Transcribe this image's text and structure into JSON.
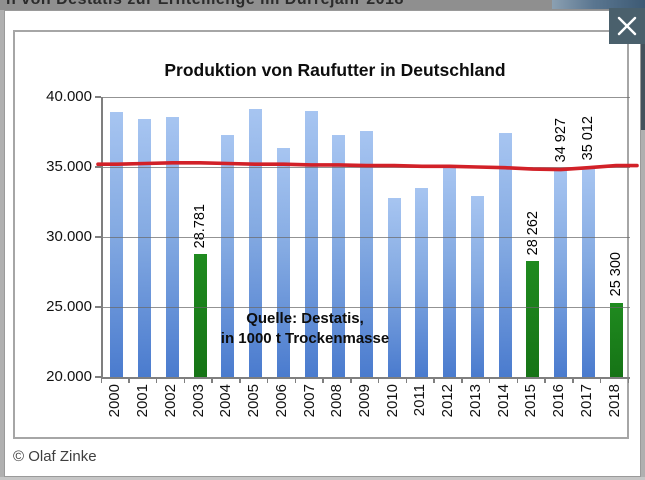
{
  "background_page": {
    "clipped_heading": "n von Destatis zur Erntemenge im Dürrejahr 2018"
  },
  "credit": "© Olaf Zinke",
  "chart_data": {
    "type": "bar",
    "title": "Produktion von Raufutter in Deutschland",
    "source_note_lines": [
      "Quelle: Destatis,",
      "in 1000 t Trockenmasse"
    ],
    "unit": "1000 t Trockenmasse",
    "ylim": [
      20000,
      40000
    ],
    "grid": true,
    "y_ticks": [
      {
        "value": 40000,
        "label": "40.000"
      },
      {
        "value": 35000,
        "label": "35.000"
      },
      {
        "value": 30000,
        "label": "30.000"
      },
      {
        "value": 25000,
        "label": "25.000"
      },
      {
        "value": 20000,
        "label": "20.000"
      }
    ],
    "bars": [
      {
        "year": "2000",
        "value": 38900,
        "color": "blue",
        "label": ""
      },
      {
        "year": "2001",
        "value": 38400,
        "color": "blue",
        "label": ""
      },
      {
        "year": "2002",
        "value": 38550,
        "color": "blue",
        "label": ""
      },
      {
        "year": "2003",
        "value": 28781,
        "color": "green",
        "label": "28.781"
      },
      {
        "year": "2004",
        "value": 37300,
        "color": "blue",
        "label": ""
      },
      {
        "year": "2005",
        "value": 39150,
        "color": "blue",
        "label": ""
      },
      {
        "year": "2006",
        "value": 36350,
        "color": "blue",
        "label": ""
      },
      {
        "year": "2007",
        "value": 39000,
        "color": "blue",
        "label": ""
      },
      {
        "year": "2008",
        "value": 37300,
        "color": "blue",
        "label": ""
      },
      {
        "year": "2009",
        "value": 37600,
        "color": "blue",
        "label": ""
      },
      {
        "year": "2010",
        "value": 32800,
        "color": "blue",
        "label": ""
      },
      {
        "year": "2011",
        "value": 33500,
        "color": "blue",
        "label": ""
      },
      {
        "year": "2012",
        "value": 35050,
        "color": "blue",
        "label": ""
      },
      {
        "year": "2013",
        "value": 32900,
        "color": "blue",
        "label": ""
      },
      {
        "year": "2014",
        "value": 37400,
        "color": "blue",
        "label": ""
      },
      {
        "year": "2015",
        "value": 28262,
        "color": "green",
        "label": "28 262"
      },
      {
        "year": "2016",
        "value": 34927,
        "color": "blue",
        "label": "34 927"
      },
      {
        "year": "2017",
        "value": 35012,
        "color": "blue",
        "label": "35 012"
      },
      {
        "year": "2018",
        "value": 25300,
        "color": "green",
        "label": "25 300"
      }
    ],
    "trend_line": {
      "name": "average-line",
      "color": "#d22128",
      "values": [
        35200,
        35250,
        35300,
        35300,
        35250,
        35200,
        35200,
        35150,
        35150,
        35100,
        35100,
        35050,
        35050,
        35000,
        34950,
        34850,
        34820,
        34950,
        35100
      ]
    },
    "colors": {
      "bar_blue_top": "#a7c5f1",
      "bar_blue_bottom": "#4a7bce",
      "bar_green": "#1b821b",
      "trend_red": "#d22128",
      "close_button_bg": "#4a606c"
    }
  }
}
